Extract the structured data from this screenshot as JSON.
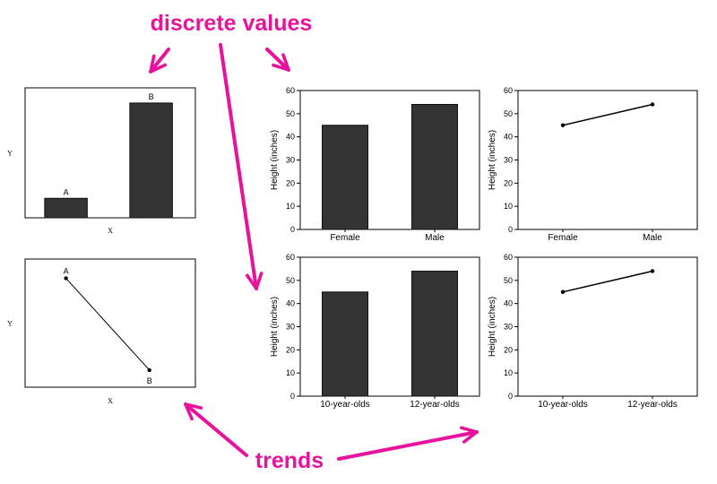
{
  "annotations": {
    "top_label": "discrete values",
    "bottom_label": "trends",
    "accent_color": "#e8139c"
  },
  "chart_data": [
    {
      "type": "bar",
      "categories": [
        "A",
        "B"
      ],
      "values": [
        9,
        53
      ],
      "ylim": [
        0,
        60
      ],
      "xlabel": "X",
      "ylabel": "Y",
      "bar_labels": [
        "A",
        "B"
      ],
      "ticks_shown": false
    },
    {
      "type": "line",
      "categories": [
        "A",
        "B"
      ],
      "values": [
        51,
        8
      ],
      "ylim": [
        0,
        60
      ],
      "xlabel": "X",
      "ylabel": "Y",
      "point_labels": [
        "A",
        "B"
      ],
      "ticks_shown": false
    },
    {
      "type": "bar",
      "categories": [
        "Female",
        "Male"
      ],
      "values": [
        45,
        54
      ],
      "ylim": [
        0,
        60
      ],
      "yticks": [
        0,
        10,
        20,
        30,
        40,
        50,
        60
      ],
      "xlabel": "",
      "ylabel": "Height (inches)"
    },
    {
      "type": "line",
      "categories": [
        "Female",
        "Male"
      ],
      "values": [
        45,
        54
      ],
      "ylim": [
        0,
        60
      ],
      "yticks": [
        0,
        10,
        20,
        30,
        40,
        50,
        60
      ],
      "xlabel": "",
      "ylabel": "Height (inches)"
    },
    {
      "type": "bar",
      "categories": [
        "10-year-olds",
        "12-year-olds"
      ],
      "values": [
        45,
        54
      ],
      "ylim": [
        0,
        60
      ],
      "yticks": [
        0,
        10,
        20,
        30,
        40,
        50,
        60
      ],
      "xlabel": "",
      "ylabel": "Height (inches)"
    },
    {
      "type": "line",
      "categories": [
        "10-year-olds",
        "12-year-olds"
      ],
      "values": [
        45,
        54
      ],
      "ylim": [
        0,
        60
      ],
      "yticks": [
        0,
        10,
        20,
        30,
        40,
        50,
        60
      ],
      "xlabel": "",
      "ylabel": "Height (inches)"
    }
  ]
}
